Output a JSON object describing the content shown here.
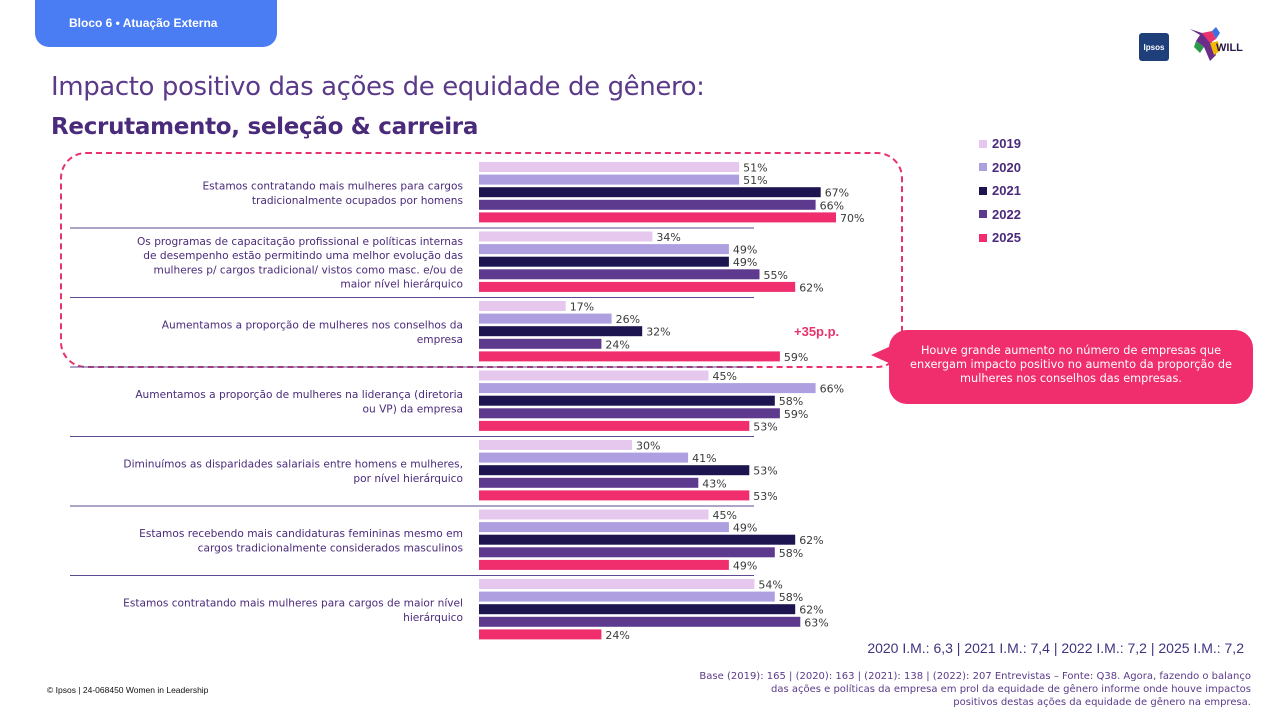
{
  "header": {
    "tab_label": "Bloco 6 • Atuação Externa"
  },
  "logos": {
    "ipsos": "Ipsos",
    "will": "WILL"
  },
  "title": "Impacto positivo das ações de equidade de gênero:",
  "subtitle": "Recrutamento, seleção & carreira",
  "colors": {
    "2019": "#e6c8ee",
    "2020": "#ad9fe0",
    "2021": "#1d1550",
    "2022": "#5e3a8e",
    "2025": "#f02d6d",
    "accent": "#e8336d"
  },
  "chart_data": {
    "type": "bar",
    "orientation": "horizontal",
    "xlim": [
      0,
      100
    ],
    "categories": [
      "Estamos contratando mais mulheres para cargos tradicionalmente ocupados por homens",
      "Os programas de capacitação profissional e políticas internas de desempenho estão permitindo uma melhor evolução das mulheres p/ cargos tradicional/ vistos como masc. e/ou de maior nível hierárquico",
      "Aumentamos a proporção de mulheres nos conselhos da empresa",
      "Aumentamos a proporção de mulheres na liderança (diretoria ou VP) da empresa",
      "Diminuímos as disparidades salariais entre homens e mulheres, por nível hierárquico",
      "Estamos recebendo mais candidaturas femininas mesmo em cargos tradicionalmente considerados masculinos",
      "Estamos contratando mais mulheres para cargos de maior nível hierárquico"
    ],
    "category_lines": [
      [
        "Estamos contratando mais mulheres para cargos",
        "tradicionalmente ocupados por homens"
      ],
      [
        "Os programas de capacitação profissional e políticas internas",
        "de desempenho estão permitindo uma melhor evolução das",
        "mulheres p/ cargos tradicional/ vistos como masc. e/ou de",
        "maior nível hierárquico"
      ],
      [
        "Aumentamos a proporção de mulheres nos conselhos da",
        "empresa"
      ],
      [
        "Aumentamos a proporção de mulheres na liderança (diretoria",
        "ou VP) da empresa"
      ],
      [
        "Diminuímos as disparidades salariais entre homens e mulheres,",
        "por nível hierárquico"
      ],
      [
        "Estamos recebendo mais candidaturas femininas mesmo em",
        "cargos tradicionalmente considerados masculinos"
      ],
      [
        "Estamos contratando mais mulheres para cargos de maior nível",
        "hierárquico"
      ]
    ],
    "series": [
      {
        "name": "2019",
        "values": [
          51,
          34,
          17,
          45,
          30,
          45,
          54
        ]
      },
      {
        "name": "2020",
        "values": [
          51,
          49,
          26,
          66,
          41,
          49,
          58
        ]
      },
      {
        "name": "2021",
        "values": [
          67,
          49,
          32,
          58,
          53,
          62,
          62
        ]
      },
      {
        "name": "2022",
        "values": [
          66,
          55,
          24,
          59,
          43,
          58,
          63
        ]
      },
      {
        "name": "2025",
        "values": [
          70,
          62,
          59,
          53,
          53,
          49,
          24
        ]
      }
    ],
    "value_suffix": "%",
    "legend_position": "top-right",
    "annotations": [
      {
        "category_index": 2,
        "text": "+35p.p."
      }
    ]
  },
  "legend": [
    {
      "label": "2019"
    },
    {
      "label": "2020"
    },
    {
      "label": "2021"
    },
    {
      "label": "2022"
    },
    {
      "label": "2025"
    }
  ],
  "callout": "Houve grande aumento no número de empresas que enxergam impacto positivo no aumento da proporção de mulheres nos conselhos das empresas.",
  "im_line": "2020 I.M.: 6,3 | 2021 I.M.: 7,4 | 2022 I.M.: 7,2 | 2025 I.M.: 7,2",
  "footer": {
    "copyright": "© Ipsos | 24-068450 Women in Leadership",
    "base_lines": [
      "Base (2019): 165 | (2020): 163  | (2021): 138 | (2022): 207 Entrevistas – Fonte: Q38.  Agora, fazendo o balanço",
      "das ações e políticas da empresa em prol da equidade de gênero informe onde houve impactos",
      "positivos destas ações da equidade de gênero na empresa."
    ]
  }
}
